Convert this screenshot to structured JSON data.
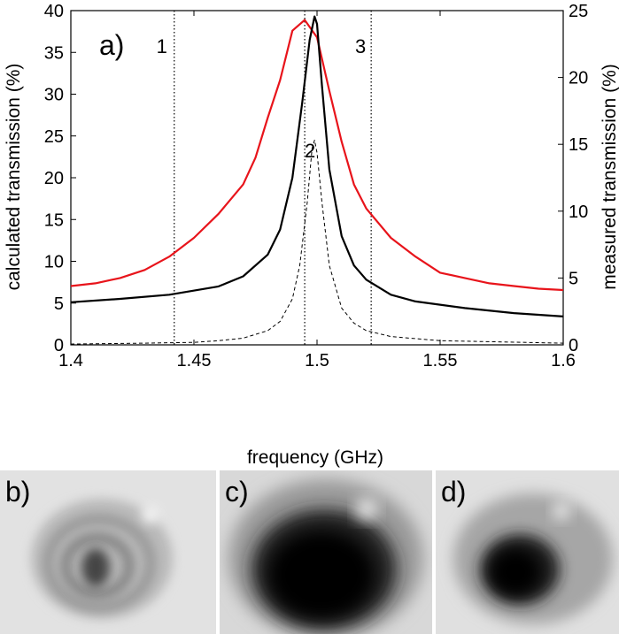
{
  "chart_data": {
    "type": "line",
    "panel_label": "a)",
    "xlabel": "frequency (GHz)",
    "ylabel": "calculated transmission (%)",
    "y2label": "measured transmission (%)",
    "xlim": [
      1.4,
      1.6
    ],
    "ylim": [
      0,
      40
    ],
    "y2lim": [
      0,
      25
    ],
    "xticks": [
      "1.4",
      "1.45",
      "1.5",
      "1.55",
      "1.6"
    ],
    "yticks": [
      "0",
      "5",
      "10",
      "15",
      "20",
      "25",
      "30",
      "35",
      "40"
    ],
    "y2ticks": [
      "0",
      "5",
      "10",
      "15",
      "20",
      "25"
    ],
    "grid": false,
    "vertical_markers": [
      {
        "label": "1",
        "x": 1.442
      },
      {
        "label": "2",
        "x": 1.495
      },
      {
        "label": "3",
        "x": 1.522
      }
    ],
    "series": [
      {
        "axis": "right",
        "color": "#e8141b",
        "style": "solid",
        "x": [
          1.4,
          1.41,
          1.42,
          1.43,
          1.44,
          1.45,
          1.46,
          1.47,
          1.475,
          1.48,
          1.485,
          1.49,
          1.495,
          1.5,
          1.505,
          1.51,
          1.515,
          1.52,
          1.53,
          1.54,
          1.55,
          1.56,
          1.57,
          1.58,
          1.59,
          1.6
        ],
        "values": [
          4.4,
          4.6,
          5.0,
          5.6,
          6.6,
          8.0,
          9.8,
          12.0,
          14.0,
          17.0,
          19.8,
          23.5,
          24.3,
          23.0,
          19.0,
          15.2,
          12.0,
          10.2,
          8.0,
          6.6,
          5.4,
          5.0,
          4.6,
          4.4,
          4.2,
          4.1
        ]
      },
      {
        "axis": "left",
        "color": "#000000",
        "style": "solid",
        "x": [
          1.4,
          1.42,
          1.44,
          1.46,
          1.47,
          1.48,
          1.485,
          1.49,
          1.494,
          1.497,
          1.499,
          1.5,
          1.502,
          1.505,
          1.51,
          1.515,
          1.52,
          1.53,
          1.54,
          1.56,
          1.58,
          1.6
        ],
        "values": [
          5.1,
          5.5,
          6.0,
          7.0,
          8.2,
          10.8,
          13.8,
          20.0,
          29.0,
          36.5,
          39.3,
          38.4,
          31.0,
          21.0,
          13.0,
          9.5,
          7.8,
          6.0,
          5.2,
          4.4,
          3.8,
          3.4
        ]
      },
      {
        "axis": "left",
        "color": "#000000",
        "style": "dashed",
        "x": [
          1.4,
          1.43,
          1.45,
          1.46,
          1.47,
          1.48,
          1.485,
          1.49,
          1.493,
          1.496,
          1.498,
          1.499,
          1.5,
          1.502,
          1.505,
          1.51,
          1.515,
          1.52,
          1.53,
          1.55,
          1.6
        ],
        "values": [
          0.1,
          0.2,
          0.3,
          0.5,
          0.8,
          1.7,
          2.8,
          5.5,
          9.5,
          17.0,
          23.5,
          24.5,
          23.0,
          17.0,
          9.5,
          4.4,
          2.6,
          1.7,
          1.0,
          0.5,
          0.2
        ]
      }
    ]
  },
  "photo_panels": [
    {
      "label": "b)",
      "spot": "faint"
    },
    {
      "label": "c)",
      "spot": "large"
    },
    {
      "label": "d)",
      "spot": "medium"
    }
  ]
}
